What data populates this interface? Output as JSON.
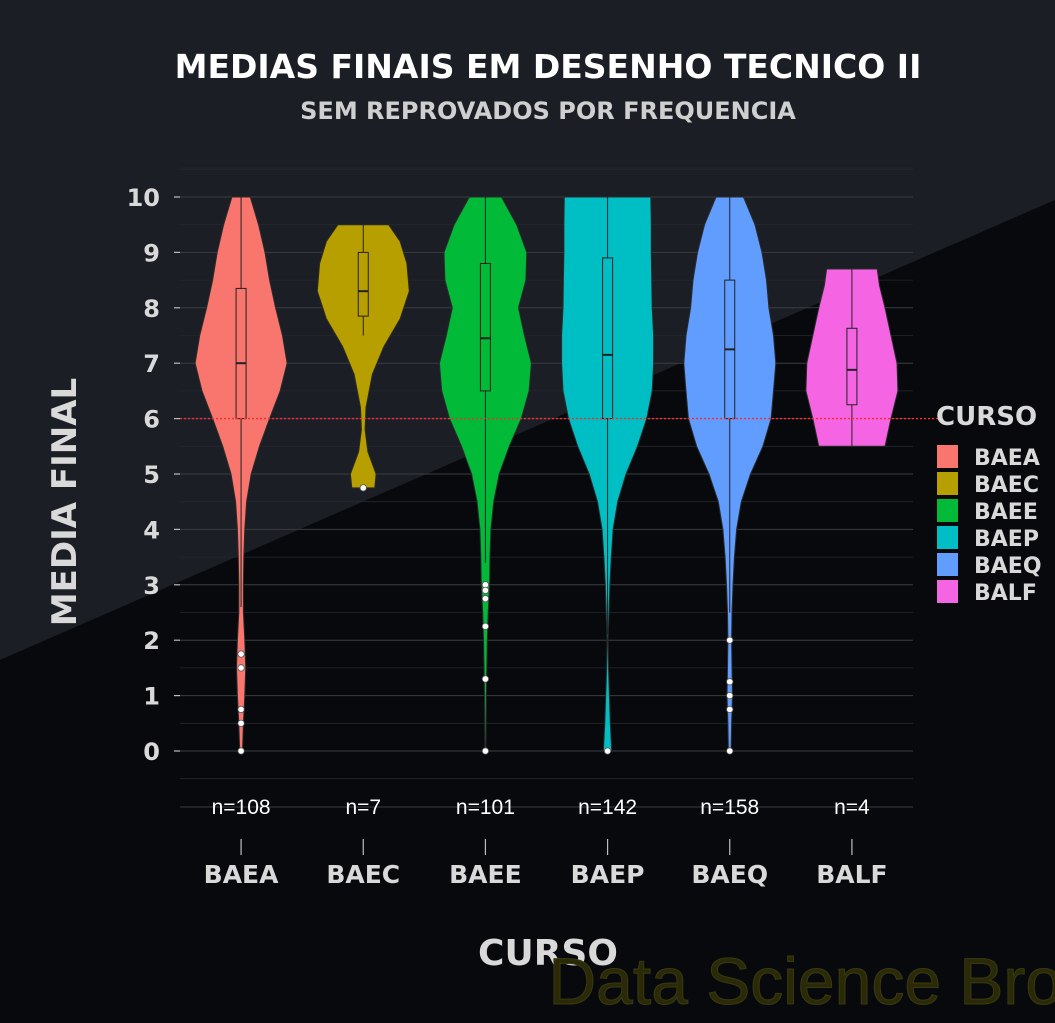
{
  "chart_data": {
    "type": "violin",
    "title": "MEDIAS FINAIS EM DESENHO TECNICO II",
    "subtitle": "SEM REPROVADOS POR FREQUENCIA",
    "xlabel": "CURSO",
    "ylabel": "MEDIA FINAL",
    "ylim": [
      -0.5,
      10.5
    ],
    "yticks": [
      0,
      1,
      2,
      3,
      4,
      5,
      6,
      7,
      8,
      9,
      10
    ],
    "reference_line": {
      "y": 6,
      "color": "#ff2a2a",
      "style": "dotted"
    },
    "legend": {
      "title": "CURSO",
      "placement": "right"
    },
    "watermark": "Data Science Broon",
    "categories": [
      "BAEA",
      "BAEC",
      "BAEE",
      "BAEP",
      "BAEQ",
      "BALF"
    ],
    "counts_text": [
      "n=108",
      "n=7",
      "n=101",
      "n=142",
      "n=158",
      "n=4"
    ],
    "series": [
      {
        "name": "BAEA",
        "color": "#f8766d",
        "n": 108,
        "box": {
          "q1": 6.0,
          "median": 7.0,
          "q3": 8.35,
          "whisker_low": 2.6,
          "whisker_high": 10.0
        },
        "outliers": [
          1.75,
          1.5,
          0.75,
          0.5,
          0.0
        ],
        "density": [
          [
            0.0,
            0.03
          ],
          [
            0.5,
            0.05
          ],
          [
            1.0,
            0.08
          ],
          [
            1.5,
            0.1
          ],
          [
            2.0,
            0.08
          ],
          [
            2.5,
            0.05
          ],
          [
            3.0,
            0.05
          ],
          [
            3.5,
            0.06
          ],
          [
            4.0,
            0.08
          ],
          [
            4.5,
            0.12
          ],
          [
            5.0,
            0.22
          ],
          [
            5.5,
            0.4
          ],
          [
            6.0,
            0.62
          ],
          [
            6.5,
            0.85
          ],
          [
            7.0,
            1.0
          ],
          [
            7.5,
            0.9
          ],
          [
            8.0,
            0.75
          ],
          [
            8.5,
            0.62
          ],
          [
            9.0,
            0.52
          ],
          [
            9.5,
            0.38
          ],
          [
            10.0,
            0.2
          ]
        ]
      },
      {
        "name": "BAEC",
        "color": "#b79f00",
        "n": 7,
        "box": {
          "q1": 7.85,
          "median": 8.3,
          "q3": 9.0,
          "whisker_low": 7.5,
          "whisker_high": 9.5
        },
        "outliers": [
          4.75
        ],
        "density": [
          [
            4.75,
            0.25
          ],
          [
            5.0,
            0.28
          ],
          [
            5.4,
            0.1
          ],
          [
            5.8,
            0.04
          ],
          [
            6.2,
            0.06
          ],
          [
            6.8,
            0.2
          ],
          [
            7.3,
            0.45
          ],
          [
            7.8,
            0.8
          ],
          [
            8.3,
            1.0
          ],
          [
            8.8,
            0.95
          ],
          [
            9.2,
            0.8
          ],
          [
            9.5,
            0.55
          ]
        ]
      },
      {
        "name": "BAEE",
        "color": "#00ba38",
        "n": 101,
        "box": {
          "q1": 6.5,
          "median": 7.45,
          "q3": 8.8,
          "whisker_low": 3.4,
          "whisker_high": 10.0
        },
        "outliers": [
          3.0,
          2.9,
          2.75,
          2.25,
          1.3,
          0.0
        ],
        "density": [
          [
            0.0,
            0.01
          ],
          [
            1.0,
            0.02
          ],
          [
            2.0,
            0.04
          ],
          [
            2.5,
            0.06
          ],
          [
            3.0,
            0.09
          ],
          [
            3.5,
            0.1
          ],
          [
            4.0,
            0.12
          ],
          [
            4.5,
            0.18
          ],
          [
            5.0,
            0.3
          ],
          [
            5.5,
            0.52
          ],
          [
            6.0,
            0.78
          ],
          [
            6.5,
            0.95
          ],
          [
            7.0,
            1.0
          ],
          [
            7.5,
            0.85
          ],
          [
            8.0,
            0.72
          ],
          [
            8.5,
            0.88
          ],
          [
            9.0,
            0.9
          ],
          [
            9.5,
            0.68
          ],
          [
            10.0,
            0.35
          ]
        ]
      },
      {
        "name": "BAEP",
        "color": "#00bfc4",
        "n": 142,
        "box": {
          "q1": 6.0,
          "median": 7.15,
          "q3": 8.9,
          "whisker_low": 2.1,
          "whisker_high": 10.0
        },
        "outliers": [
          0.0
        ],
        "density": [
          [
            0.0,
            0.09
          ],
          [
            0.5,
            0.06
          ],
          [
            1.0,
            0.04
          ],
          [
            1.5,
            0.02
          ],
          [
            2.0,
            0.01
          ],
          [
            2.5,
            0.03
          ],
          [
            3.0,
            0.05
          ],
          [
            3.5,
            0.08
          ],
          [
            4.0,
            0.12
          ],
          [
            4.5,
            0.22
          ],
          [
            5.0,
            0.4
          ],
          [
            5.5,
            0.65
          ],
          [
            6.0,
            0.85
          ],
          [
            6.5,
            0.97
          ],
          [
            7.0,
            1.0
          ],
          [
            7.5,
            1.0
          ],
          [
            8.0,
            0.97
          ],
          [
            8.5,
            0.96
          ],
          [
            9.0,
            0.95
          ],
          [
            9.5,
            0.95
          ],
          [
            10.0,
            0.94
          ]
        ]
      },
      {
        "name": "BAEQ",
        "color": "#619cff",
        "n": 158,
        "box": {
          "q1": 6.0,
          "median": 7.25,
          "q3": 8.5,
          "whisker_low": 2.5,
          "whisker_high": 10.0
        },
        "outliers": [
          2.0,
          1.25,
          1.0,
          0.75,
          0.0
        ],
        "density": [
          [
            0.0,
            0.03
          ],
          [
            0.5,
            0.04
          ],
          [
            1.0,
            0.06
          ],
          [
            1.5,
            0.05
          ],
          [
            2.0,
            0.04
          ],
          [
            2.5,
            0.05
          ],
          [
            3.0,
            0.07
          ],
          [
            3.5,
            0.1
          ],
          [
            4.0,
            0.15
          ],
          [
            4.5,
            0.25
          ],
          [
            5.0,
            0.45
          ],
          [
            5.5,
            0.72
          ],
          [
            6.0,
            0.9
          ],
          [
            6.5,
            0.95
          ],
          [
            7.0,
            1.0
          ],
          [
            7.5,
            0.95
          ],
          [
            8.0,
            0.85
          ],
          [
            8.5,
            0.8
          ],
          [
            9.0,
            0.7
          ],
          [
            9.5,
            0.55
          ],
          [
            10.0,
            0.3
          ]
        ]
      },
      {
        "name": "BALF",
        "color": "#f564e3",
        "n": 4,
        "box": {
          "q1": 6.25,
          "median": 6.88,
          "q3": 7.63,
          "whisker_low": 5.5,
          "whisker_high": 8.7
        },
        "outliers": [],
        "density": [
          [
            5.5,
            0.72
          ],
          [
            6.0,
            0.85
          ],
          [
            6.5,
            1.0
          ],
          [
            7.0,
            0.98
          ],
          [
            7.5,
            0.85
          ],
          [
            8.0,
            0.72
          ],
          [
            8.4,
            0.6
          ],
          [
            8.7,
            0.55
          ]
        ]
      }
    ]
  }
}
